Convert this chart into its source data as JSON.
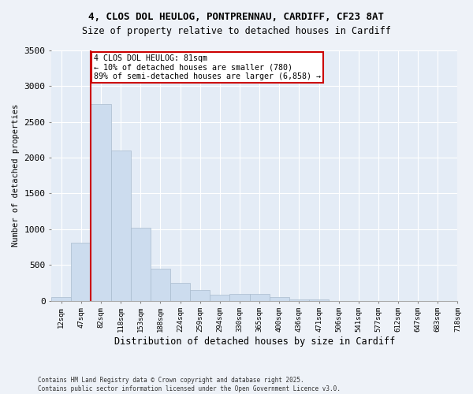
{
  "title_line1": "4, CLOS DOL HEULOG, PONTPRENNAU, CARDIFF, CF23 8AT",
  "title_line2": "Size of property relative to detached houses in Cardiff",
  "xlabel": "Distribution of detached houses by size in Cardiff",
  "ylabel": "Number of detached properties",
  "bar_values": [
    55,
    810,
    2750,
    2100,
    1020,
    450,
    245,
    150,
    85,
    90,
    90,
    55,
    20,
    15,
    0,
    0,
    0,
    0,
    0,
    0
  ],
  "bar_labels": [
    "12sqm",
    "47sqm",
    "82sqm",
    "118sqm",
    "153sqm",
    "188sqm",
    "224sqm",
    "259sqm",
    "294sqm",
    "330sqm",
    "365sqm",
    "400sqm",
    "436sqm",
    "471sqm",
    "506sqm",
    "541sqm",
    "577sqm",
    "612sqm",
    "647sqm",
    "683sqm",
    "718sqm"
  ],
  "bar_color": "#ccdcee",
  "bar_edgecolor": "#aabcce",
  "property_line_color": "#cc0000",
  "annotation_text": "4 CLOS DOL HEULOG: 81sqm\n← 10% of detached houses are smaller (780)\n89% of semi-detached houses are larger (6,858) →",
  "annotation_box_color": "#cc0000",
  "ylim": [
    0,
    3500
  ],
  "yticks": [
    0,
    500,
    1000,
    1500,
    2000,
    2500,
    3000,
    3500
  ],
  "footnote": "Contains HM Land Registry data © Crown copyright and database right 2025.\nContains public sector information licensed under the Open Government Licence v3.0.",
  "background_color": "#eef2f8",
  "plot_bg_color": "#e4ecf6"
}
